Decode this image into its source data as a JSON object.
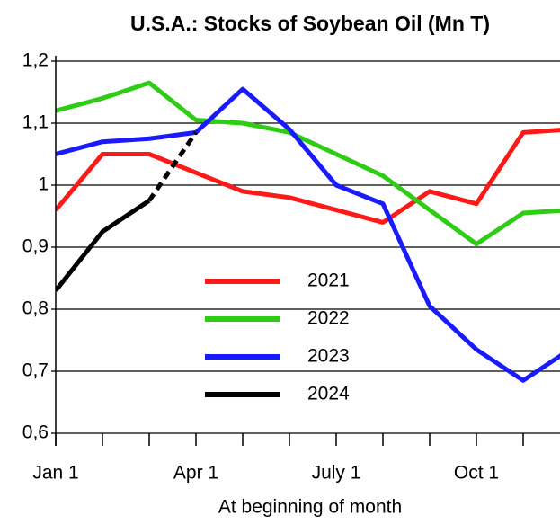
{
  "chart_data": {
    "type": "line",
    "title": "U.S.A.:  Stocks of Soybean Oil (Mn T)",
    "x_label": "At beginning of month",
    "categories": [
      "Jan 1",
      null,
      null,
      "Apr 1",
      null,
      null,
      "July 1",
      null,
      null,
      "Oct 1",
      null,
      null
    ],
    "ylim": [
      0.6,
      1.2
    ],
    "yticks": [
      {
        "value": 0.6,
        "label": "0,6"
      },
      {
        "value": 0.7,
        "label": "0,7"
      },
      {
        "value": 0.8,
        "label": "0,8"
      },
      {
        "value": 0.9,
        "label": "0,9"
      },
      1,
      {
        "value": 1.1,
        "label": "1,1"
      },
      {
        "value": 1.2,
        "label": "1,2"
      }
    ],
    "grid": true,
    "legend": "center",
    "series": [
      {
        "name": "2021",
        "color": "#ff1a1a",
        "values": [
          0.96,
          1.05,
          1.05,
          1.02,
          0.99,
          0.98,
          0.96,
          0.94,
          0.99,
          0.97,
          1.085,
          1.09
        ]
      },
      {
        "name": "2022",
        "color": "#2ecc14",
        "values": [
          1.12,
          1.14,
          1.165,
          1.105,
          1.1,
          1.085,
          1.05,
          1.015,
          0.96,
          0.905,
          0.955,
          0.96
        ]
      },
      {
        "name": "2023",
        "color": "#1a1aff",
        "values": [
          1.05,
          1.07,
          1.075,
          1.085,
          1.155,
          1.09,
          1.0,
          0.97,
          0.805,
          0.735,
          0.685,
          0.735
        ]
      },
      {
        "name": "2024",
        "color": "#000000",
        "dashed_from": 2,
        "values": [
          0.83,
          0.925,
          0.975,
          1.085,
          null,
          null,
          null,
          null,
          null,
          null,
          null,
          null
        ]
      }
    ]
  }
}
